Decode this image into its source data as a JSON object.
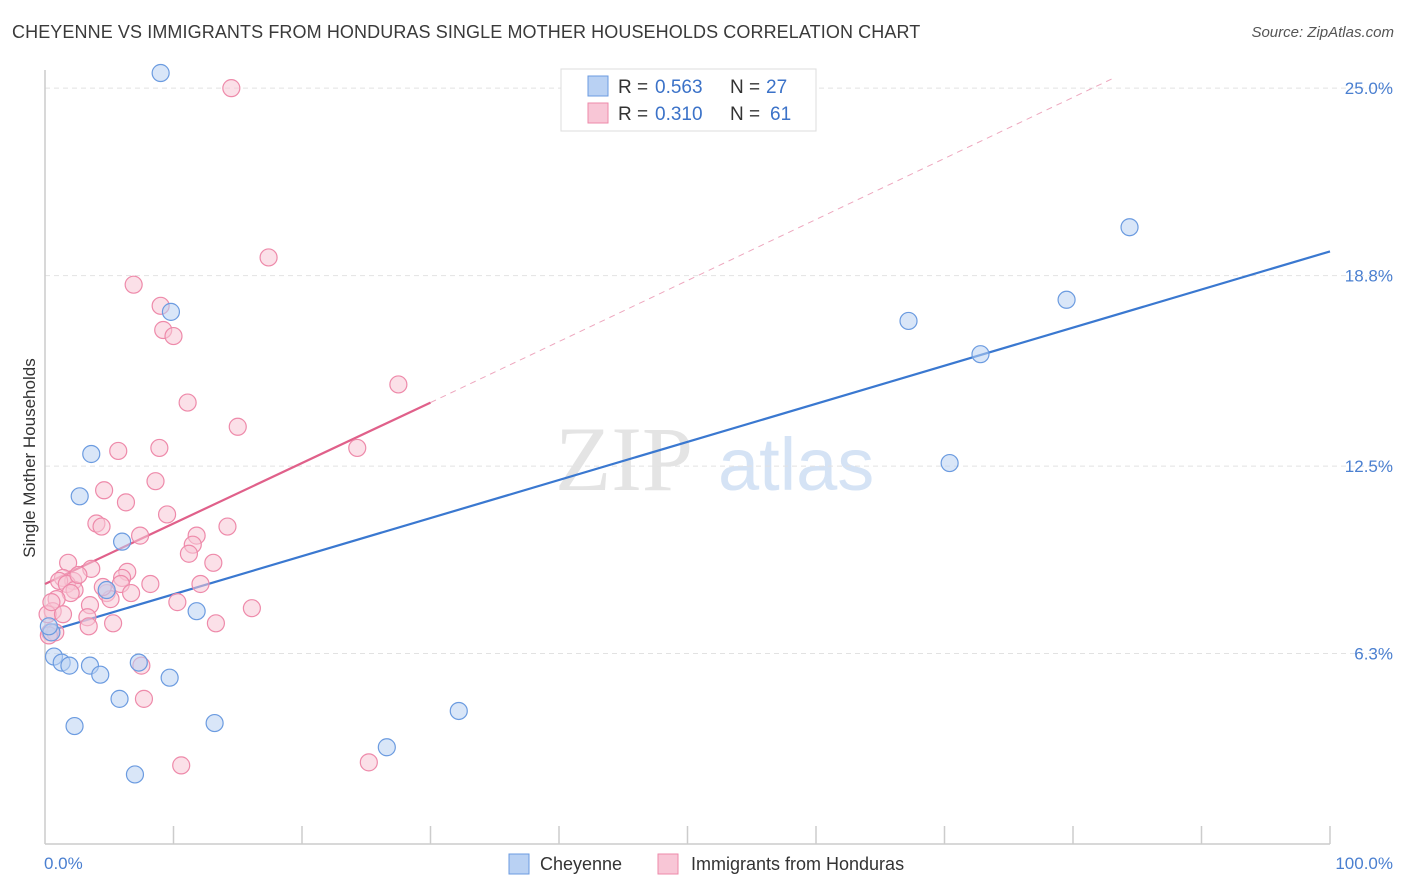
{
  "title": "CHEYENNE VS IMMIGRANTS FROM HONDURAS SINGLE MOTHER HOUSEHOLDS CORRELATION CHART",
  "source": "Source: ZipAtlas.com",
  "watermark": {
    "zip": "ZIP",
    "atlas": "atlas"
  },
  "chart_data": {
    "type": "scatter",
    "ylabel": "Single Mother Households",
    "xlabel": "",
    "xlim": [
      0,
      100
    ],
    "ylim": [
      0,
      25.6
    ],
    "x_tick_labels": [
      "0.0%",
      "100.0%"
    ],
    "y_ticks": [
      6.3,
      12.5,
      18.8,
      25.0
    ],
    "y_tick_labels": [
      "6.3%",
      "12.5%",
      "18.8%",
      "25.0%"
    ],
    "legend": {
      "r_label": "R =",
      "n_label": "N =",
      "entries": [
        {
          "name": "Cheyenne",
          "R": "0.563",
          "N": "27"
        },
        {
          "name": "Immigrants from Honduras",
          "R": "0.310",
          "N": "61"
        }
      ]
    },
    "series": [
      {
        "name": "Cheyenne",
        "color": "#6b9be0",
        "fill": "#b9d1f3",
        "line_color": "#3a78d0",
        "trend": {
          "x0": 0,
          "y0": 7.0,
          "x1": 100,
          "y1": 19.6
        },
        "points": [
          [
            9.0,
            25.5
          ],
          [
            9.8,
            17.6
          ],
          [
            3.6,
            12.9
          ],
          [
            2.7,
            11.5
          ],
          [
            6.0,
            10.0
          ],
          [
            4.8,
            8.4
          ],
          [
            11.8,
            7.7
          ],
          [
            0.5,
            7.0
          ],
          [
            0.7,
            6.2
          ],
          [
            1.3,
            6.0
          ],
          [
            1.9,
            5.9
          ],
          [
            3.5,
            5.9
          ],
          [
            4.3,
            5.6
          ],
          [
            7.3,
            6.0
          ],
          [
            9.7,
            5.5
          ],
          [
            5.8,
            4.8
          ],
          [
            2.3,
            3.9
          ],
          [
            13.2,
            4.0
          ],
          [
            26.6,
            3.2
          ],
          [
            7.0,
            2.3
          ],
          [
            32.2,
            4.4
          ],
          [
            67.2,
            17.3
          ],
          [
            72.8,
            16.2
          ],
          [
            79.5,
            18.0
          ],
          [
            84.4,
            20.4
          ],
          [
            70.4,
            12.6
          ],
          [
            0.3,
            7.2
          ]
        ]
      },
      {
        "name": "Immigrants from Honduras",
        "color": "#ee8aaa",
        "fill": "#f8c6d6",
        "line_color": "#e0608a",
        "trend": {
          "x0": 0,
          "y0": 8.6,
          "x1": 30,
          "y1": 14.6
        },
        "trend_dashed": {
          "x0": 30,
          "y0": 14.6,
          "x1": 83,
          "y1": 25.3
        },
        "points": [
          [
            14.5,
            25.0
          ],
          [
            17.4,
            19.4
          ],
          [
            6.9,
            18.5
          ],
          [
            9.0,
            17.8
          ],
          [
            9.2,
            17.0
          ],
          [
            10.0,
            16.8
          ],
          [
            27.5,
            15.2
          ],
          [
            11.1,
            14.6
          ],
          [
            15.0,
            13.8
          ],
          [
            5.7,
            13.0
          ],
          [
            8.9,
            13.1
          ],
          [
            24.3,
            13.1
          ],
          [
            8.6,
            12.0
          ],
          [
            4.6,
            11.7
          ],
          [
            6.3,
            11.3
          ],
          [
            9.5,
            10.9
          ],
          [
            4.0,
            10.6
          ],
          [
            4.4,
            10.5
          ],
          [
            14.2,
            10.5
          ],
          [
            7.4,
            10.2
          ],
          [
            11.8,
            10.2
          ],
          [
            11.5,
            9.9
          ],
          [
            11.2,
            9.6
          ],
          [
            1.8,
            9.3
          ],
          [
            13.1,
            9.3
          ],
          [
            3.6,
            9.1
          ],
          [
            6.4,
            9.0
          ],
          [
            6.0,
            8.8
          ],
          [
            1.4,
            8.8
          ],
          [
            2.2,
            8.7
          ],
          [
            1.1,
            8.7
          ],
          [
            1.7,
            8.6
          ],
          [
            5.9,
            8.6
          ],
          [
            8.2,
            8.6
          ],
          [
            12.1,
            8.6
          ],
          [
            2.3,
            8.4
          ],
          [
            2.0,
            8.3
          ],
          [
            4.8,
            8.3
          ],
          [
            0.9,
            8.1
          ],
          [
            5.1,
            8.1
          ],
          [
            10.3,
            8.0
          ],
          [
            3.5,
            7.9
          ],
          [
            16.1,
            7.8
          ],
          [
            0.6,
            7.7
          ],
          [
            0.2,
            7.6
          ],
          [
            1.4,
            7.6
          ],
          [
            3.3,
            7.5
          ],
          [
            5.3,
            7.3
          ],
          [
            13.3,
            7.3
          ],
          [
            3.4,
            7.2
          ],
          [
            0.4,
            7.0
          ],
          [
            0.8,
            7.0
          ],
          [
            7.5,
            5.9
          ],
          [
            7.7,
            4.8
          ],
          [
            10.6,
            2.6
          ],
          [
            25.2,
            2.7
          ],
          [
            0.3,
            6.9
          ],
          [
            2.6,
            8.9
          ],
          [
            4.5,
            8.5
          ],
          [
            0.5,
            8.0
          ],
          [
            6.7,
            8.3
          ]
        ]
      }
    ]
  }
}
